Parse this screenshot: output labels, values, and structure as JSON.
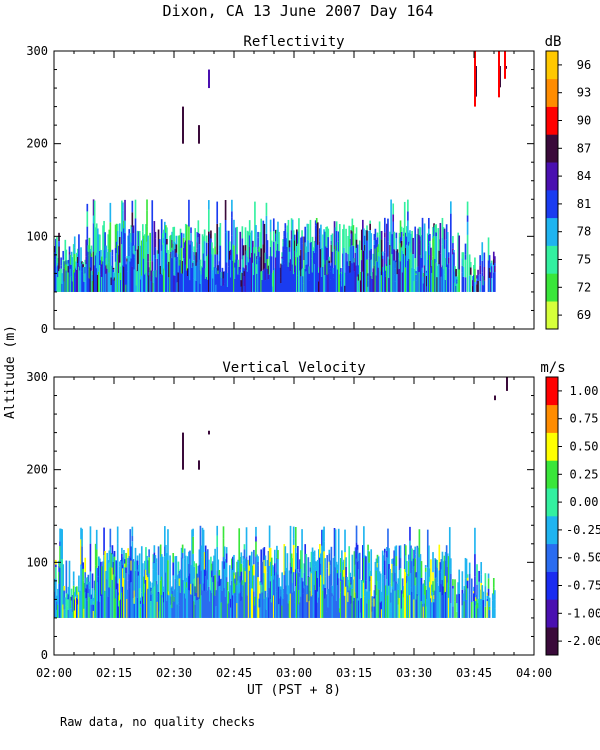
{
  "title": "Dixon, CA 13 June 2007  Day 164",
  "footnote": "Raw data, no quality checks",
  "chart_data": [
    {
      "type": "heatmap",
      "title": "Reflectivity",
      "ylabel": "Altitude (m)",
      "xlabel": "UT  (PST + 8)",
      "x_range_minutes": [
        0,
        120
      ],
      "ylim": [
        0,
        300
      ],
      "x_ticks": [
        "02:00",
        "02:15",
        "02:30",
        "02:45",
        "03:00",
        "03:15",
        "03:30",
        "03:45",
        "04:00"
      ],
      "y_ticks": [
        0,
        100,
        200,
        300
      ],
      "colorbar": {
        "unit": "dB",
        "labels": [
          "69",
          "72",
          "75",
          "78",
          "81",
          "84",
          "87",
          "90",
          "93",
          "96"
        ],
        "colors": [
          "#d6ff3a",
          "#3ae63a",
          "#33f0a0",
          "#1fb4f0",
          "#1a3cf0",
          "#4a10b0",
          "#3a0a3a",
          "#ff0000",
          "#ff8c00",
          "#ffc800"
        ]
      },
      "description_of_field": {
        "dense_echo_layer_m": [
          40,
          140
        ],
        "time_extent_min": [
          0,
          110
        ],
        "scattered_echoes": [
          {
            "t_min": 32,
            "alt_m": [
              200,
              240
            ]
          },
          {
            "t_min": 36,
            "alt_m": [
              200,
              220
            ]
          },
          {
            "t_min": 38.5,
            "alt_m": [
              260,
              280
            ]
          },
          {
            "t_min": 105,
            "alt_m": [
              240,
              300
            ]
          },
          {
            "t_min": 111,
            "alt_m": [
              250,
              300
            ]
          },
          {
            "t_min": 112.5,
            "alt_m": [
              270,
              300
            ]
          }
        ]
      }
    },
    {
      "type": "heatmap",
      "title": "Vertical Velocity",
      "ylabel": "Altitude (m)",
      "xlabel": "UT  (PST + 8)",
      "x_range_minutes": [
        0,
        120
      ],
      "ylim": [
        0,
        300
      ],
      "x_ticks": [
        "02:00",
        "02:15",
        "02:30",
        "02:45",
        "03:00",
        "03:15",
        "03:30",
        "03:45",
        "04:00"
      ],
      "y_ticks": [
        0,
        100,
        200,
        300
      ],
      "colorbar": {
        "unit": "m/s",
        "labels": [
          "-2.00",
          "-1.00",
          "-0.75",
          "-0.50",
          "-0.25",
          "0.00",
          "0.25",
          "0.50",
          "0.75",
          "1.00"
        ],
        "colors": [
          "#3a0a3a",
          "#4a10b0",
          "#1a2cf0",
          "#2a6cf0",
          "#1fb4f0",
          "#33f0a0",
          "#3ae63a",
          "#ffff00",
          "#ff8c00",
          "#ff0000"
        ]
      },
      "description_of_field": {
        "dense_echo_layer_m": [
          40,
          140
        ],
        "time_extent_min": [
          0,
          110
        ],
        "scattered_echoes": [
          {
            "t_min": 32,
            "alt_m": [
              200,
              240
            ]
          },
          {
            "t_min": 36,
            "alt_m": [
              200,
              210
            ]
          },
          {
            "t_min": 38.5,
            "alt_m": [
              238,
              242
            ]
          },
          {
            "t_min": 110,
            "alt_m": [
              275,
              280
            ]
          },
          {
            "t_min": 113,
            "alt_m": [
              285,
              300
            ]
          }
        ]
      }
    }
  ]
}
